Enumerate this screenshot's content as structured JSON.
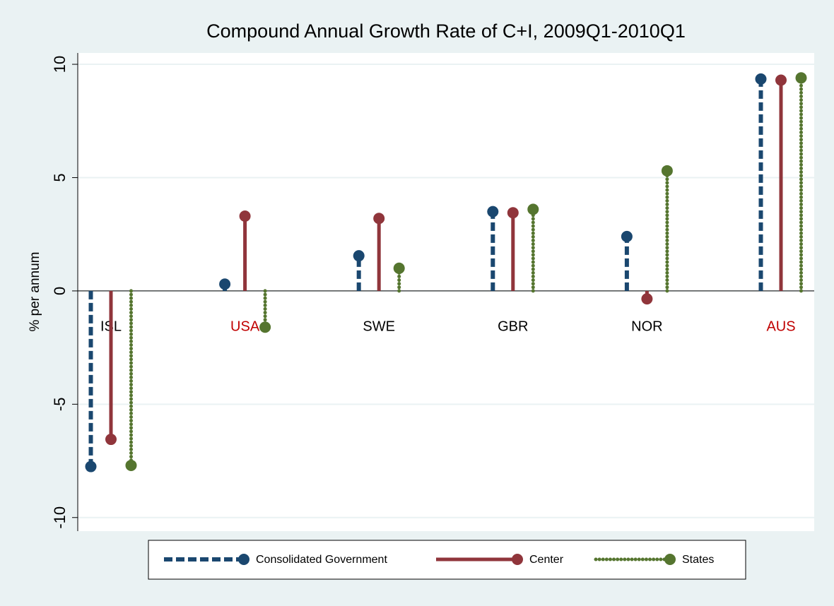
{
  "chart_data": {
    "type": "dropline",
    "title": "Compound Annual Growth Rate of C+I, 2009Q1-2010Q1",
    "y_label": "% per annum",
    "categories": [
      "ISL",
      "USA",
      "SWE",
      "GBR",
      "NOR",
      "AUS"
    ],
    "category_label_colors": [
      "#000000",
      "#c00000",
      "#000000",
      "#000000",
      "#000000",
      "#c00000"
    ],
    "series": [
      {
        "name": "Consolidated Government",
        "color": "#1a476f",
        "line_style": "dashed",
        "values": [
          -7.75,
          0.3,
          1.55,
          3.5,
          2.4,
          9.35
        ]
      },
      {
        "name": "Center",
        "color": "#90353b",
        "line_style": "solid",
        "values": [
          -6.55,
          3.3,
          3.2,
          3.45,
          -0.35,
          9.3
        ]
      },
      {
        "name": "States",
        "color": "#55752f",
        "line_style": "dotted",
        "values": [
          -7.7,
          -1.6,
          1.0,
          3.6,
          5.3,
          9.4
        ]
      }
    ],
    "ylim": [
      -10.6,
      10.5
    ],
    "yticks": [
      -10,
      -5,
      0,
      5,
      10
    ],
    "grid": true
  }
}
